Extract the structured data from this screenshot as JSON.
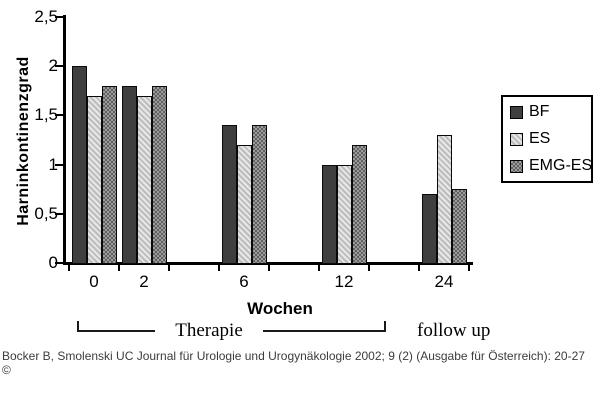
{
  "figure": {
    "citation_line1": "Bocker B, Smolenski UC Journal für Urologie und Urogynäkologie 2002; 9 (2) (Ausgabe für Österreich): 20-27",
    "citation_line2": "©"
  },
  "chart_data": {
    "type": "bar",
    "title": "",
    "ylabel": "Harninkontinenzgrad",
    "xlabel": "Wochen",
    "categories": [
      "0",
      "2",
      "6",
      "12",
      "24"
    ],
    "series": [
      {
        "name": "BF",
        "values": [
          2.0,
          1.8,
          1.4,
          1.0,
          0.7
        ],
        "color": "#3f3f3f",
        "pattern": "solid"
      },
      {
        "name": "ES",
        "values": [
          1.7,
          1.7,
          1.2,
          1.0,
          1.3
        ],
        "color": "#d9d9d9",
        "pattern": "diagonal-hatch"
      },
      {
        "name": "EMG-ES",
        "values": [
          1.8,
          1.8,
          1.4,
          1.2,
          0.75
        ],
        "color": "#808080",
        "pattern": "checker"
      }
    ],
    "ylim": [
      0,
      2.5
    ],
    "yticks": [
      "0",
      "0,5",
      "1",
      "1,5",
      "2",
      "2,5"
    ],
    "ytick_values": [
      0,
      0.5,
      1,
      1.5,
      2,
      2.5
    ],
    "x_slots": [
      0,
      1,
      3,
      5,
      7
    ],
    "n_slots": 8,
    "grid": false,
    "legend_position": "right",
    "annotations": {
      "therapie": "Therapie",
      "follow_up": "follow up"
    }
  }
}
